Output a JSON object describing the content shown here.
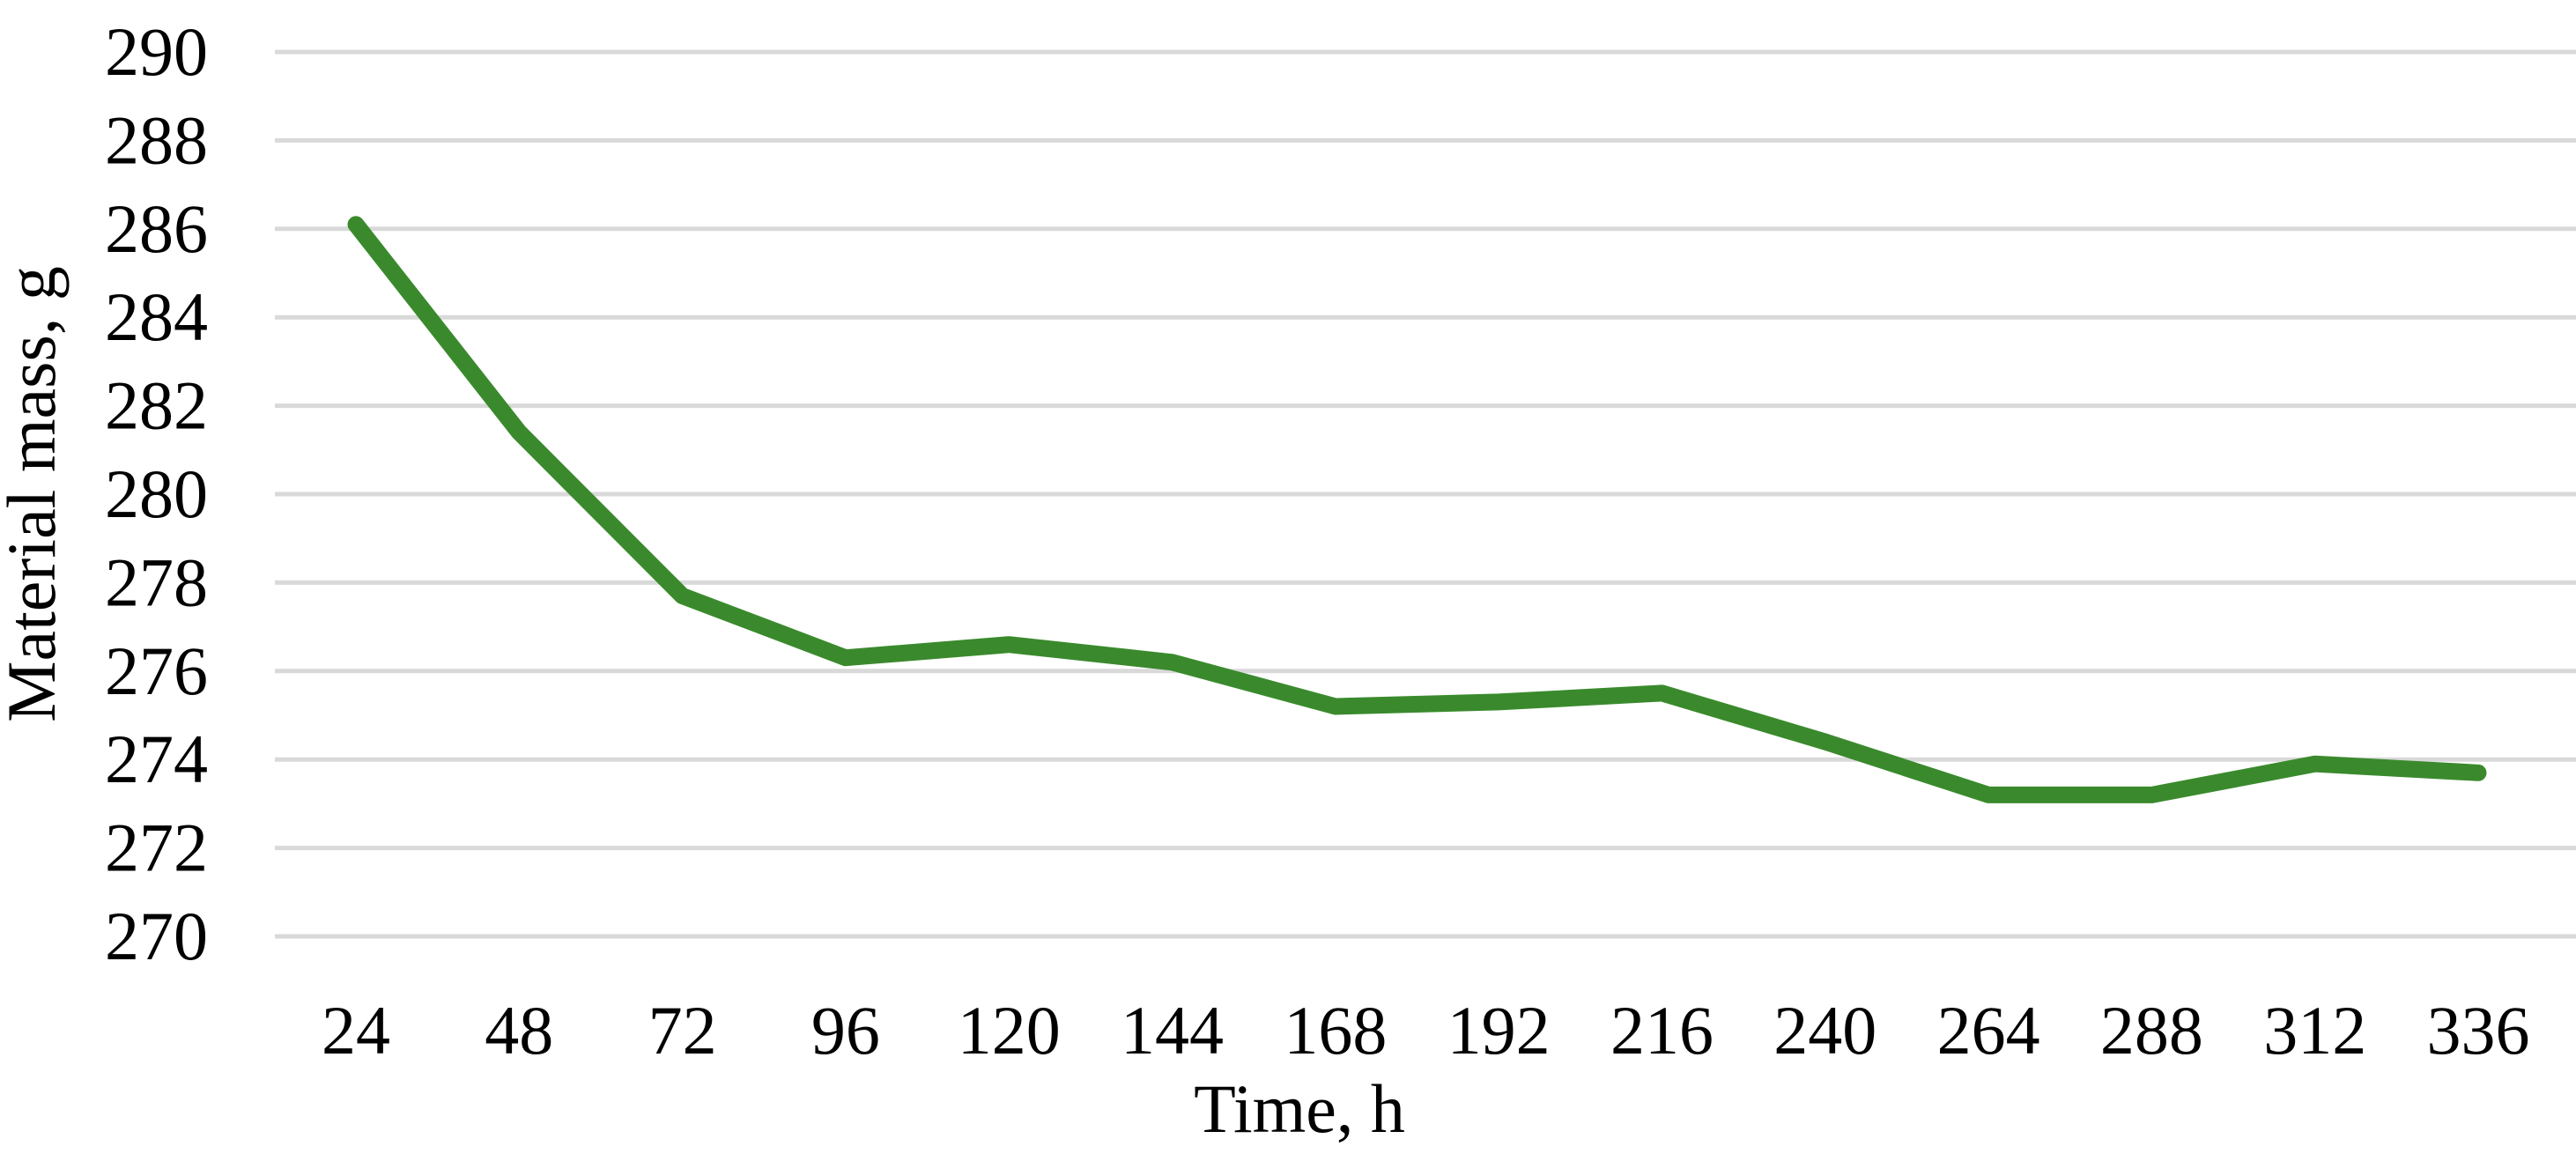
{
  "chart_data": {
    "type": "line",
    "title": "",
    "xlabel": "Time, h",
    "ylabel": "Material mass, g",
    "categories": [
      "24",
      "48",
      "72",
      "96",
      "120",
      "144",
      "168",
      "192",
      "216",
      "240",
      "264",
      "288",
      "312",
      "336"
    ],
    "series": [
      {
        "name": "Material mass",
        "values": [
          286.1,
          281.4,
          277.7,
          276.3,
          276.6,
          276.2,
          275.2,
          275.3,
          275.5,
          274.4,
          273.2,
          273.2,
          273.9,
          273.7
        ]
      }
    ],
    "ylim": [
      270,
      290
    ],
    "ytick_step": 2,
    "yticks": [
      "270",
      "272",
      "274",
      "276",
      "278",
      "280",
      "282",
      "284",
      "286",
      "288",
      "290"
    ],
    "grid": "horizontal-only",
    "legend": "none",
    "line_color": "#3a8a2d",
    "gridline_color": "#d9d9d9",
    "text_color": "#000000",
    "background_color": "#ffffff"
  }
}
